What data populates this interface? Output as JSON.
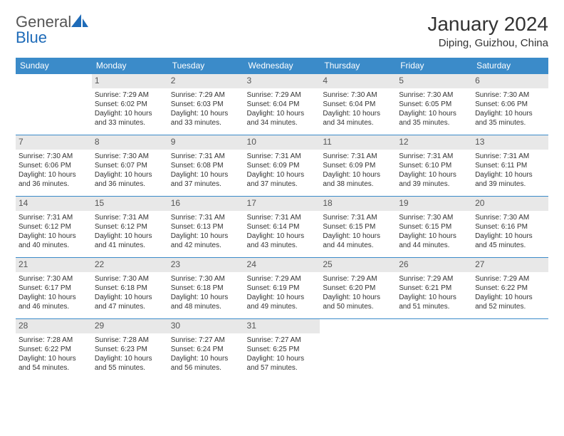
{
  "logo": {
    "part1": "General",
    "part2": "Blue"
  },
  "title": "January 2024",
  "location": "Diping, Guizhou, China",
  "colors": {
    "header_bg": "#3b8bc9",
    "header_fg": "#ffffff",
    "daynum_bg": "#e8e8e8",
    "border": "#3b8bc9",
    "logo_blue": "#1e6bb8"
  },
  "weekdays": [
    "Sunday",
    "Monday",
    "Tuesday",
    "Wednesday",
    "Thursday",
    "Friday",
    "Saturday"
  ],
  "weeks": [
    [
      {
        "day": "",
        "sunrise": "",
        "sunset": "",
        "daylight": ""
      },
      {
        "day": "1",
        "sunrise": "Sunrise: 7:29 AM",
        "sunset": "Sunset: 6:02 PM",
        "daylight": "Daylight: 10 hours and 33 minutes."
      },
      {
        "day": "2",
        "sunrise": "Sunrise: 7:29 AM",
        "sunset": "Sunset: 6:03 PM",
        "daylight": "Daylight: 10 hours and 33 minutes."
      },
      {
        "day": "3",
        "sunrise": "Sunrise: 7:29 AM",
        "sunset": "Sunset: 6:04 PM",
        "daylight": "Daylight: 10 hours and 34 minutes."
      },
      {
        "day": "4",
        "sunrise": "Sunrise: 7:30 AM",
        "sunset": "Sunset: 6:04 PM",
        "daylight": "Daylight: 10 hours and 34 minutes."
      },
      {
        "day": "5",
        "sunrise": "Sunrise: 7:30 AM",
        "sunset": "Sunset: 6:05 PM",
        "daylight": "Daylight: 10 hours and 35 minutes."
      },
      {
        "day": "6",
        "sunrise": "Sunrise: 7:30 AM",
        "sunset": "Sunset: 6:06 PM",
        "daylight": "Daylight: 10 hours and 35 minutes."
      }
    ],
    [
      {
        "day": "7",
        "sunrise": "Sunrise: 7:30 AM",
        "sunset": "Sunset: 6:06 PM",
        "daylight": "Daylight: 10 hours and 36 minutes."
      },
      {
        "day": "8",
        "sunrise": "Sunrise: 7:30 AM",
        "sunset": "Sunset: 6:07 PM",
        "daylight": "Daylight: 10 hours and 36 minutes."
      },
      {
        "day": "9",
        "sunrise": "Sunrise: 7:31 AM",
        "sunset": "Sunset: 6:08 PM",
        "daylight": "Daylight: 10 hours and 37 minutes."
      },
      {
        "day": "10",
        "sunrise": "Sunrise: 7:31 AM",
        "sunset": "Sunset: 6:09 PM",
        "daylight": "Daylight: 10 hours and 37 minutes."
      },
      {
        "day": "11",
        "sunrise": "Sunrise: 7:31 AM",
        "sunset": "Sunset: 6:09 PM",
        "daylight": "Daylight: 10 hours and 38 minutes."
      },
      {
        "day": "12",
        "sunrise": "Sunrise: 7:31 AM",
        "sunset": "Sunset: 6:10 PM",
        "daylight": "Daylight: 10 hours and 39 minutes."
      },
      {
        "day": "13",
        "sunrise": "Sunrise: 7:31 AM",
        "sunset": "Sunset: 6:11 PM",
        "daylight": "Daylight: 10 hours and 39 minutes."
      }
    ],
    [
      {
        "day": "14",
        "sunrise": "Sunrise: 7:31 AM",
        "sunset": "Sunset: 6:12 PM",
        "daylight": "Daylight: 10 hours and 40 minutes."
      },
      {
        "day": "15",
        "sunrise": "Sunrise: 7:31 AM",
        "sunset": "Sunset: 6:12 PM",
        "daylight": "Daylight: 10 hours and 41 minutes."
      },
      {
        "day": "16",
        "sunrise": "Sunrise: 7:31 AM",
        "sunset": "Sunset: 6:13 PM",
        "daylight": "Daylight: 10 hours and 42 minutes."
      },
      {
        "day": "17",
        "sunrise": "Sunrise: 7:31 AM",
        "sunset": "Sunset: 6:14 PM",
        "daylight": "Daylight: 10 hours and 43 minutes."
      },
      {
        "day": "18",
        "sunrise": "Sunrise: 7:31 AM",
        "sunset": "Sunset: 6:15 PM",
        "daylight": "Daylight: 10 hours and 44 minutes."
      },
      {
        "day": "19",
        "sunrise": "Sunrise: 7:30 AM",
        "sunset": "Sunset: 6:15 PM",
        "daylight": "Daylight: 10 hours and 44 minutes."
      },
      {
        "day": "20",
        "sunrise": "Sunrise: 7:30 AM",
        "sunset": "Sunset: 6:16 PM",
        "daylight": "Daylight: 10 hours and 45 minutes."
      }
    ],
    [
      {
        "day": "21",
        "sunrise": "Sunrise: 7:30 AM",
        "sunset": "Sunset: 6:17 PM",
        "daylight": "Daylight: 10 hours and 46 minutes."
      },
      {
        "day": "22",
        "sunrise": "Sunrise: 7:30 AM",
        "sunset": "Sunset: 6:18 PM",
        "daylight": "Daylight: 10 hours and 47 minutes."
      },
      {
        "day": "23",
        "sunrise": "Sunrise: 7:30 AM",
        "sunset": "Sunset: 6:18 PM",
        "daylight": "Daylight: 10 hours and 48 minutes."
      },
      {
        "day": "24",
        "sunrise": "Sunrise: 7:29 AM",
        "sunset": "Sunset: 6:19 PM",
        "daylight": "Daylight: 10 hours and 49 minutes."
      },
      {
        "day": "25",
        "sunrise": "Sunrise: 7:29 AM",
        "sunset": "Sunset: 6:20 PM",
        "daylight": "Daylight: 10 hours and 50 minutes."
      },
      {
        "day": "26",
        "sunrise": "Sunrise: 7:29 AM",
        "sunset": "Sunset: 6:21 PM",
        "daylight": "Daylight: 10 hours and 51 minutes."
      },
      {
        "day": "27",
        "sunrise": "Sunrise: 7:29 AM",
        "sunset": "Sunset: 6:22 PM",
        "daylight": "Daylight: 10 hours and 52 minutes."
      }
    ],
    [
      {
        "day": "28",
        "sunrise": "Sunrise: 7:28 AM",
        "sunset": "Sunset: 6:22 PM",
        "daylight": "Daylight: 10 hours and 54 minutes."
      },
      {
        "day": "29",
        "sunrise": "Sunrise: 7:28 AM",
        "sunset": "Sunset: 6:23 PM",
        "daylight": "Daylight: 10 hours and 55 minutes."
      },
      {
        "day": "30",
        "sunrise": "Sunrise: 7:27 AM",
        "sunset": "Sunset: 6:24 PM",
        "daylight": "Daylight: 10 hours and 56 minutes."
      },
      {
        "day": "31",
        "sunrise": "Sunrise: 7:27 AM",
        "sunset": "Sunset: 6:25 PM",
        "daylight": "Daylight: 10 hours and 57 minutes."
      },
      {
        "day": "",
        "sunrise": "",
        "sunset": "",
        "daylight": ""
      },
      {
        "day": "",
        "sunrise": "",
        "sunset": "",
        "daylight": ""
      },
      {
        "day": "",
        "sunrise": "",
        "sunset": "",
        "daylight": ""
      }
    ]
  ]
}
